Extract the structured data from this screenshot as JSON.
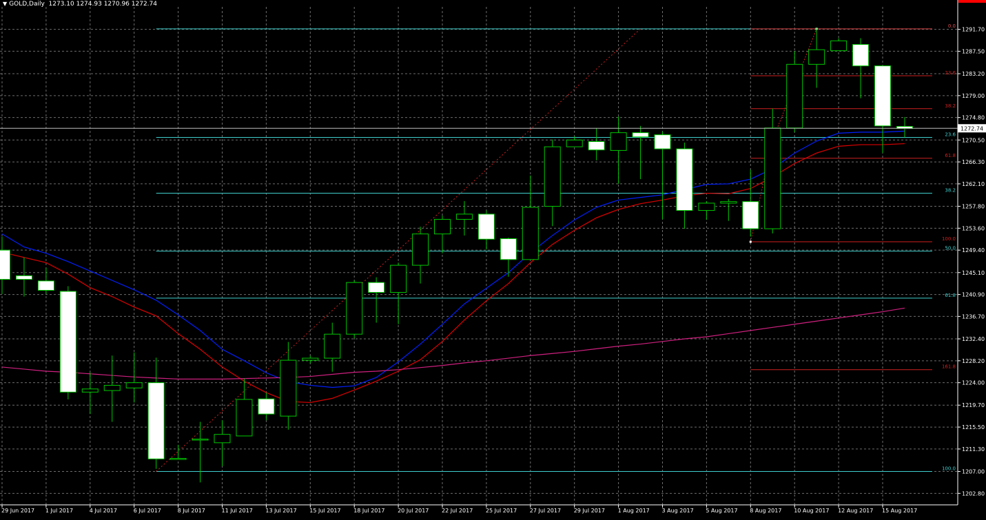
{
  "header": {
    "symbol": "GOLD,Daily",
    "ohlc": "1273.10 1274.93 1270.96 1272.74"
  },
  "colors": {
    "background": "#000000",
    "grid": "#6e6e6e",
    "axis_text": "#ffffff",
    "bull_body": "#000000",
    "bear_body": "#ffffff",
    "candle_outline": "#00c800",
    "fib_cyan": "#40d0d0",
    "fib_red": "#d02020",
    "ma_blue": "#0020ff",
    "ma_red": "#e00000",
    "ma_pink": "#d02080",
    "price_label_bg": "#ffffff"
  },
  "chart_data": {
    "type": "candlestick",
    "y_range": [
      1200.6,
      1296.0
    ],
    "y_ticks": [
      "1291.70",
      "1287.50",
      "1283.20",
      "1279.00",
      "1274.80",
      "1270.50",
      "1266.30",
      "1262.10",
      "1257.80",
      "1253.60",
      "1249.40",
      "1245.10",
      "1240.90",
      "1236.70",
      "1232.40",
      "1228.20",
      "1224.00",
      "1219.70",
      "1215.50",
      "1211.30",
      "1207.00",
      "1202.80"
    ],
    "x_ticks": [
      {
        "label": "29 Jun 2017",
        "i": 0
      },
      {
        "label": "1 Jul 2017",
        "i": 2
      },
      {
        "label": "4 Jul 2017",
        "i": 4
      },
      {
        "label": "6 Jul 2017",
        "i": 6
      },
      {
        "label": "8 Jul 2017",
        "i": 8
      },
      {
        "label": "11 Jul 2017",
        "i": 10
      },
      {
        "label": "13 Jul 2017",
        "i": 12
      },
      {
        "label": "15 Jul 2017",
        "i": 14
      },
      {
        "label": "18 Jul 2017",
        "i": 16
      },
      {
        "label": "20 Jul 2017",
        "i": 18
      },
      {
        "label": "22 Jul 2017",
        "i": 20
      },
      {
        "label": "25 Jul 2017",
        "i": 22
      },
      {
        "label": "27 Jul 2017",
        "i": 24
      },
      {
        "label": "29 Jul 2017",
        "i": 26
      },
      {
        "label": "1 Aug 2017",
        "i": 28
      },
      {
        "label": "3 Aug 2017",
        "i": 30
      },
      {
        "label": "5 Aug 2017",
        "i": 32
      },
      {
        "label": "8 Aug 2017",
        "i": 34
      },
      {
        "label": "10 Aug 2017",
        "i": 36
      },
      {
        "label": "12 Aug 2017",
        "i": 38
      },
      {
        "label": "15 Aug 2017",
        "i": 40
      }
    ],
    "candles": [
      {
        "o": 1249.4,
        "h": 1252.0,
        "l": 1241.0,
        "c": 1243.8
      },
      {
        "o": 1244.5,
        "h": 1248.0,
        "l": 1240.5,
        "c": 1243.8
      },
      {
        "o": 1243.5,
        "h": 1246.0,
        "l": 1241.0,
        "c": 1241.7
      },
      {
        "o": 1241.5,
        "h": 1242.5,
        "l": 1220.8,
        "c": 1222.2
      },
      {
        "o": 1222.2,
        "h": 1226.0,
        "l": 1218.0,
        "c": 1222.8
      },
      {
        "o": 1222.5,
        "h": 1229.2,
        "l": 1216.5,
        "c": 1223.5
      },
      {
        "o": 1223.0,
        "h": 1229.8,
        "l": 1220.2,
        "c": 1224.0
      },
      {
        "o": 1224.0,
        "h": 1228.8,
        "l": 1207.5,
        "c": 1209.4
      },
      {
        "o": 1209.3,
        "h": 1212.1,
        "l": 1209.3,
        "c": 1209.5
      },
      {
        "o": 1213.0,
        "h": 1216.5,
        "l": 1204.9,
        "c": 1213.2
      },
      {
        "o": 1212.5,
        "h": 1216.8,
        "l": 1208.0,
        "c": 1214.1
      },
      {
        "o": 1213.8,
        "h": 1224.8,
        "l": 1213.8,
        "c": 1220.8
      },
      {
        "o": 1220.9,
        "h": 1222.1,
        "l": 1216.8,
        "c": 1218.0
      },
      {
        "o": 1217.6,
        "h": 1231.8,
        "l": 1215.0,
        "c": 1228.3
      },
      {
        "o": 1228.3,
        "h": 1229.2,
        "l": 1227.7,
        "c": 1228.7
      },
      {
        "o": 1228.7,
        "h": 1235.5,
        "l": 1226.1,
        "c": 1233.3
      },
      {
        "o": 1233.3,
        "h": 1243.6,
        "l": 1232.5,
        "c": 1243.2
      },
      {
        "o": 1243.2,
        "h": 1244.2,
        "l": 1235.5,
        "c": 1241.3
      },
      {
        "o": 1241.3,
        "h": 1247.0,
        "l": 1235.2,
        "c": 1246.5
      },
      {
        "o": 1246.5,
        "h": 1253.9,
        "l": 1243.0,
        "c": 1252.5
      },
      {
        "o": 1252.5,
        "h": 1256.0,
        "l": 1248.8,
        "c": 1255.3
      },
      {
        "o": 1255.3,
        "h": 1258.8,
        "l": 1252.2,
        "c": 1256.3
      },
      {
        "o": 1256.3,
        "h": 1257.0,
        "l": 1249.5,
        "c": 1251.5
      },
      {
        "o": 1251.6,
        "h": 1251.8,
        "l": 1244.3,
        "c": 1247.6
      },
      {
        "o": 1247.6,
        "h": 1263.7,
        "l": 1247.6,
        "c": 1257.6
      },
      {
        "o": 1257.8,
        "h": 1270.6,
        "l": 1254.0,
        "c": 1269.2
      },
      {
        "o": 1269.2,
        "h": 1271.2,
        "l": 1269.2,
        "c": 1270.5
      },
      {
        "o": 1270.2,
        "h": 1272.8,
        "l": 1266.6,
        "c": 1268.6
      },
      {
        "o": 1268.5,
        "h": 1275.0,
        "l": 1262.1,
        "c": 1271.9
      },
      {
        "o": 1271.9,
        "h": 1273.2,
        "l": 1263.0,
        "c": 1271.1
      },
      {
        "o": 1271.5,
        "h": 1272.1,
        "l": 1255.3,
        "c": 1268.8
      },
      {
        "o": 1268.8,
        "h": 1270.0,
        "l": 1253.5,
        "c": 1257.0
      },
      {
        "o": 1257.0,
        "h": 1258.8,
        "l": 1255.2,
        "c": 1258.4
      },
      {
        "o": 1258.4,
        "h": 1259.2,
        "l": 1255.0,
        "c": 1258.7
      },
      {
        "o": 1258.7,
        "h": 1264.8,
        "l": 1252.0,
        "c": 1253.5
      },
      {
        "o": 1253.5,
        "h": 1276.5,
        "l": 1252.6,
        "c": 1272.8
      },
      {
        "o": 1272.8,
        "h": 1287.5,
        "l": 1272.0,
        "c": 1285.0
      },
      {
        "o": 1285.0,
        "h": 1292.0,
        "l": 1280.5,
        "c": 1287.8
      },
      {
        "o": 1287.6,
        "h": 1290.0,
        "l": 1287.6,
        "c": 1289.5
      },
      {
        "o": 1288.8,
        "h": 1290.0,
        "l": 1278.5,
        "c": 1284.7
      },
      {
        "o": 1284.7,
        "h": 1284.7,
        "l": 1268.0,
        "c": 1273.2
      },
      {
        "o": 1273.1,
        "h": 1274.9,
        "l": 1271.0,
        "c": 1272.7
      }
    ],
    "moving_averages": [
      {
        "color_key": "ma_blue",
        "values": [
          1252.5,
          1250.0,
          1248.8,
          1247.2,
          1245.4,
          1243.6,
          1241.8,
          1239.8,
          1237.0,
          1234.0,
          1230.4,
          1228.2,
          1225.9,
          1224.2,
          1223.5,
          1223.1,
          1223.4,
          1225.0,
          1228.0,
          1231.4,
          1235.2,
          1239.1,
          1242.1,
          1245.1,
          1248.9,
          1252.2,
          1255.2,
          1257.6,
          1259.0,
          1259.5,
          1260.0,
          1261.0,
          1262.0,
          1262.1,
          1263.0,
          1265.0,
          1268.0,
          1270.3,
          1271.8,
          1272.0,
          1272.0,
          1272.2
        ]
      },
      {
        "color_key": "ma_red",
        "values": [
          1249.0,
          1248.0,
          1247.0,
          1244.8,
          1242.2,
          1240.5,
          1238.5,
          1236.8,
          1233.4,
          1230.4,
          1227.0,
          1224.3,
          1222.1,
          1220.4,
          1220.2,
          1221.0,
          1222.6,
          1224.3,
          1226.2,
          1228.4,
          1231.9,
          1236.0,
          1239.7,
          1243.0,
          1247.0,
          1250.5,
          1253.2,
          1255.6,
          1257.2,
          1258.3,
          1259.0,
          1259.8,
          1260.3,
          1260.2,
          1261.2,
          1263.4,
          1266.0,
          1268.0,
          1269.3,
          1269.6,
          1269.6,
          1269.8
        ]
      },
      {
        "color_key": "ma_pink",
        "values": [
          1227.0,
          1226.6,
          1226.2,
          1226.0,
          1225.7,
          1225.4,
          1225.1,
          1224.9,
          1224.7,
          1224.7,
          1224.7,
          1224.8,
          1224.9,
          1225.0,
          1225.2,
          1225.6,
          1226.0,
          1226.2,
          1226.5,
          1226.9,
          1227.3,
          1227.8,
          1228.2,
          1228.7,
          1229.2,
          1229.6,
          1230.0,
          1230.5,
          1231.0,
          1231.4,
          1231.9,
          1232.4,
          1232.8,
          1233.4,
          1234.0,
          1234.6,
          1235.2,
          1235.8,
          1236.4,
          1237.0,
          1237.6,
          1238.3
        ]
      }
    ],
    "fib_cyan": {
      "x_from": 7,
      "x_to": 41,
      "levels": [
        {
          "label": "0.0",
          "value": 1291.8
        },
        {
          "label": "23.6",
          "value": 1271.0
        },
        {
          "label": "38.2",
          "value": 1260.3
        },
        {
          "label": "50.0",
          "value": 1249.2
        },
        {
          "label": "61.8",
          "value": 1240.2
        },
        {
          "label": "100.0",
          "value": 1207.0
        }
      ]
    },
    "fib_red": {
      "x_from": 34,
      "x_to": 41,
      "levels": [
        {
          "label": "0.0",
          "value": 1291.8
        },
        {
          "label": "23.6",
          "value": 1282.8
        },
        {
          "label": "38.2",
          "value": 1276.5
        },
        {
          "label": "61.8",
          "value": 1267.0
        },
        {
          "label": "100.0",
          "value": 1251.0
        },
        {
          "label": "161.8",
          "value": 1226.5
        }
      ]
    },
    "cyan_trend": [
      {
        "i": 7,
        "v": 1207.0
      },
      {
        "i": 29,
        "v": 1291.8
      }
    ],
    "red_trend": [
      {
        "i": 34,
        "v": 1251.0
      },
      {
        "i": 35,
        "v": 1270.5
      },
      {
        "i": 37,
        "v": 1291.8
      }
    ],
    "current_price": {
      "label": "1272.74",
      "value": 1272.74
    }
  }
}
